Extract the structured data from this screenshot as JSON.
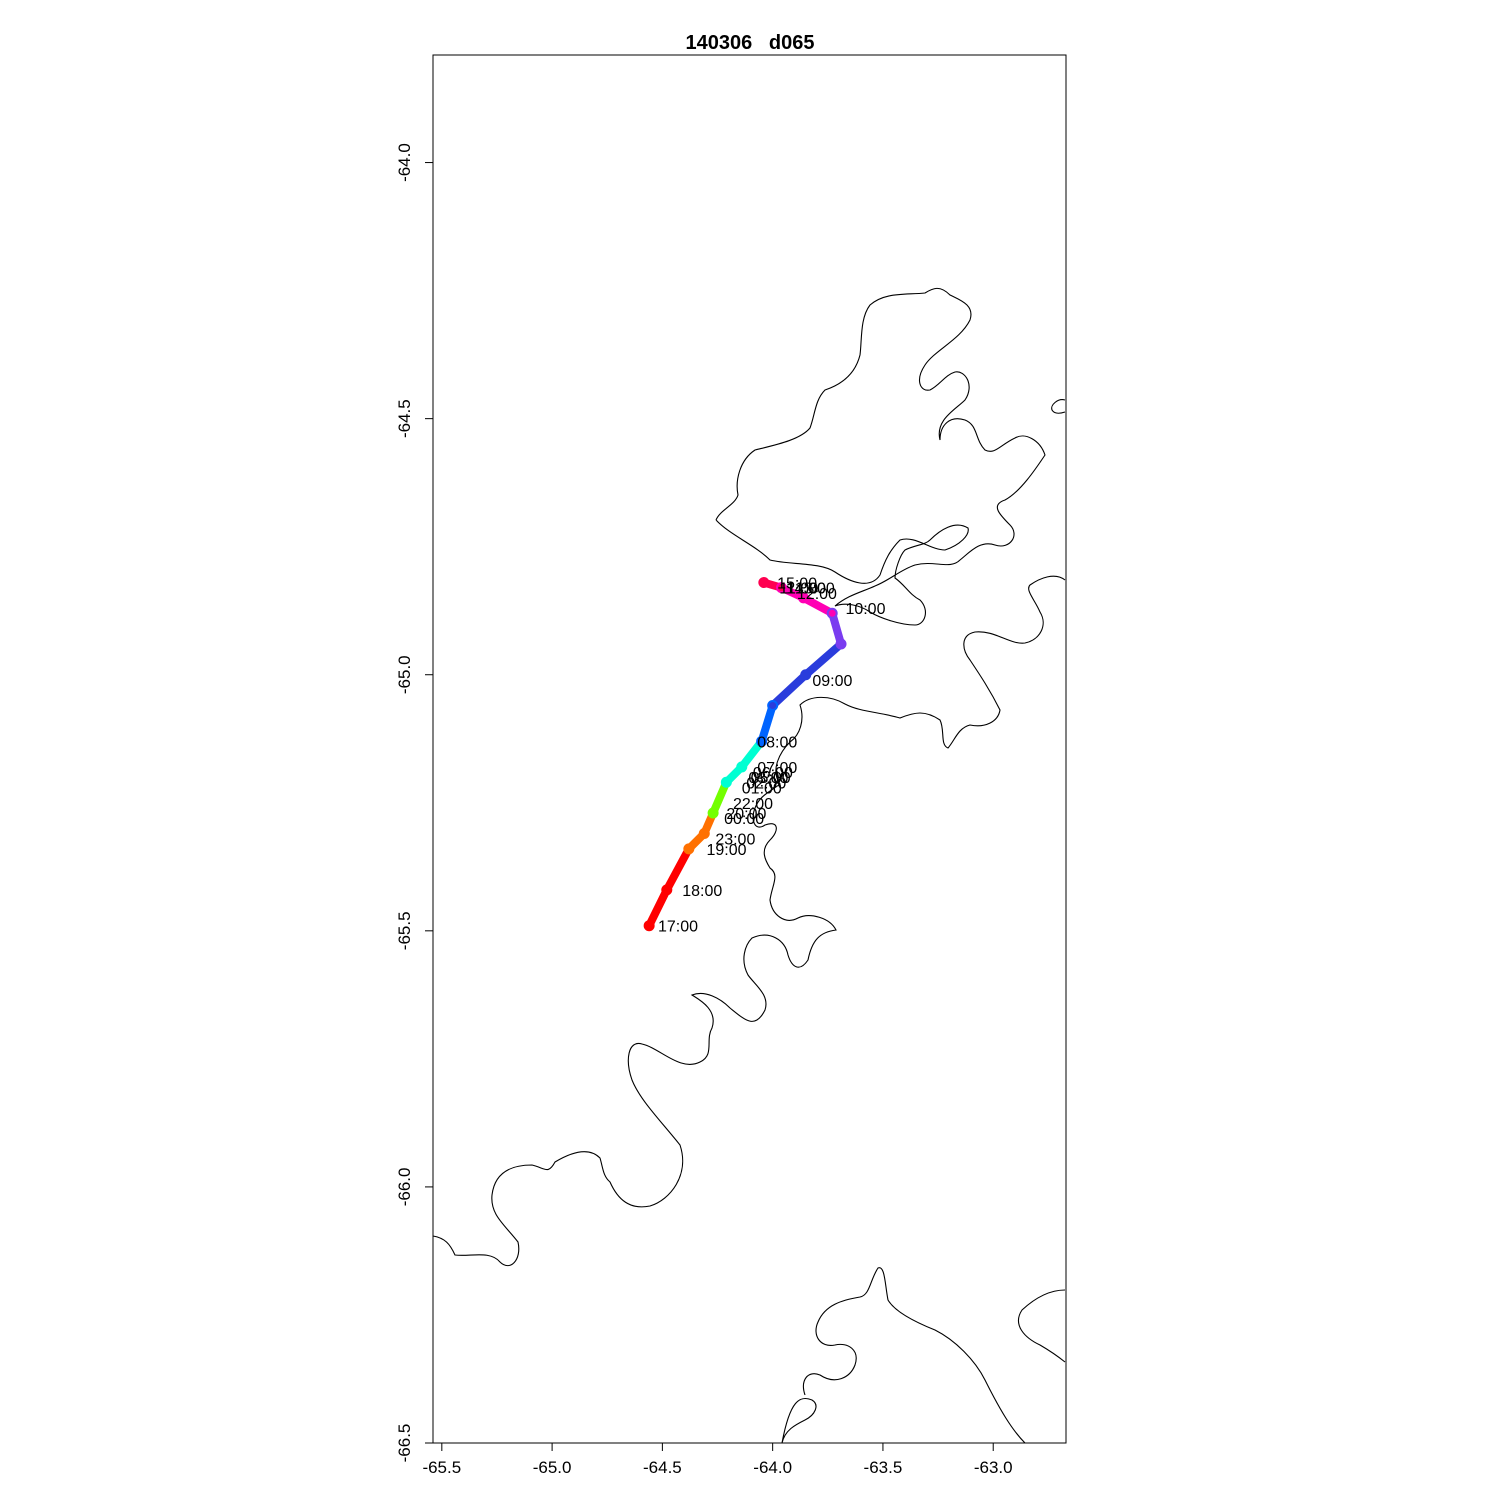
{
  "title": "140306   d065",
  "chart_data": {
    "type": "map-track",
    "title": "140306   d065",
    "x_ticks": [
      "-65.5",
      "-65.0",
      "-64.5",
      "-64.0",
      "-63.5",
      "-63.0"
    ],
    "y_ticks": [
      "-64.0",
      "-64.5",
      "-65.0",
      "-65.5",
      "-66.0",
      "-66.5"
    ],
    "xlim": [
      -65.54,
      -62.67
    ],
    "ylim": [
      -66.5,
      -63.79
    ],
    "track_colors": [
      "#ff0000",
      "#ff7000",
      "#73ff00",
      "#00ffd2",
      "#0064ff",
      "#2a3cdc",
      "#7a3cf0",
      "#ff00b4",
      "#ff0050"
    ],
    "track": [
      {
        "lon": -64.56,
        "lat": -65.49
      },
      {
        "lon": -64.48,
        "lat": -65.42
      },
      {
        "lon": -64.38,
        "lat": -65.34
      },
      {
        "lon": -64.31,
        "lat": -65.31
      },
      {
        "lon": -64.27,
        "lat": -65.27
      },
      {
        "lon": -64.21,
        "lat": -65.21
      },
      {
        "lon": -64.14,
        "lat": -65.18
      },
      {
        "lon": -64.05,
        "lat": -65.13
      },
      {
        "lon": -64.0,
        "lat": -65.06
      },
      {
        "lon": -63.85,
        "lat": -65.0
      },
      {
        "lon": -63.69,
        "lat": -64.94
      },
      {
        "lon": -63.73,
        "lat": -64.88
      },
      {
        "lon": -63.86,
        "lat": -64.85
      },
      {
        "lon": -63.96,
        "lat": -64.83
      },
      {
        "lon": -64.04,
        "lat": -64.82
      }
    ],
    "time_labels": [
      {
        "text": "17:00",
        "lon": -64.52,
        "lat": -65.49
      },
      {
        "text": "18:00",
        "lon": -64.41,
        "lat": -65.42
      },
      {
        "text": "19:00",
        "lon": -64.3,
        "lat": -65.34
      },
      {
        "text": "23:00",
        "lon": -64.26,
        "lat": -65.32
      },
      {
        "text": "00:00",
        "lon": -64.22,
        "lat": -65.28
      },
      {
        "text": "20:00",
        "lon": -64.21,
        "lat": -65.27
      },
      {
        "text": "22:00",
        "lon": -64.18,
        "lat": -65.25
      },
      {
        "text": "01:00",
        "lon": -64.14,
        "lat": -65.22
      },
      {
        "text": "02:00",
        "lon": -64.12,
        "lat": -65.21
      },
      {
        "text": "03:00",
        "lon": -64.11,
        "lat": -65.2
      },
      {
        "text": "05:00",
        "lon": -64.1,
        "lat": -65.2
      },
      {
        "text": "06:00",
        "lon": -64.09,
        "lat": -65.19
      },
      {
        "text": "07:00",
        "lon": -64.07,
        "lat": -65.18
      },
      {
        "text": "08:00",
        "lon": -64.07,
        "lat": -65.13
      },
      {
        "text": "09:00",
        "lon": -63.82,
        "lat": -65.01
      },
      {
        "text": "10:00",
        "lon": -63.67,
        "lat": -64.87
      },
      {
        "text": "15:00",
        "lon": -63.98,
        "lat": -64.82
      },
      {
        "text": "11:00",
        "lon": -63.97,
        "lat": -64.83
      },
      {
        "text": "12:00",
        "lon": -63.89,
        "lat": -64.84
      },
      {
        "text": "13:00",
        "lon": -63.9,
        "lat": -64.83
      },
      {
        "text": "14:00",
        "lon": -63.94,
        "lat": -64.83
      }
    ]
  }
}
